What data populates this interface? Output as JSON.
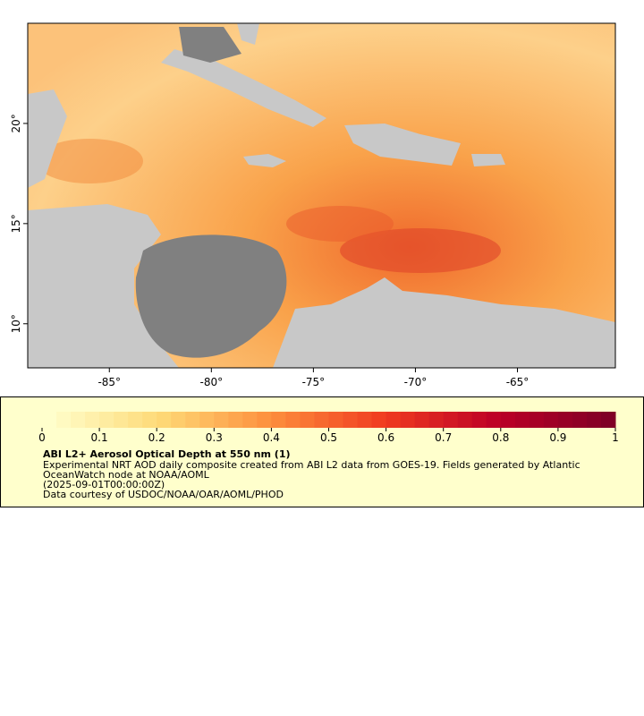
{
  "map": {
    "xlim": [
      -89,
      -60.2
    ],
    "ylim": [
      7.8,
      25
    ],
    "xticks": [
      {
        "value": -85,
        "label": "-85°"
      },
      {
        "value": -80,
        "label": "-80°"
      },
      {
        "value": -75,
        "label": "-75°"
      },
      {
        "value": -70,
        "label": "-70°"
      },
      {
        "value": -65,
        "label": "-65°"
      }
    ],
    "yticks": [
      {
        "value": 20,
        "label": "20°"
      },
      {
        "value": 15,
        "label": "15°"
      },
      {
        "value": 10,
        "label": "10°"
      }
    ]
  },
  "colorbar": {
    "range": [
      0,
      1
    ],
    "ticks": [
      0,
      0.1,
      0.2,
      0.3,
      0.4,
      0.5,
      0.6,
      0.7,
      0.8,
      0.9,
      1
    ]
  },
  "legend": {
    "title": "ABI L2+ Aerosol Optical Depth at 550 nm (1)",
    "lines": [
      "Experimental NRT AOD daily composite created from ABI L2 data from GOES-19. Fields generated by Atlantic",
      "OceanWatch node at NOAA/AOML",
      "(2025-09-01T00:00:00Z)",
      "Data courtesy of USDOC/NOAA/OAR/AOML/PHOD"
    ]
  }
}
